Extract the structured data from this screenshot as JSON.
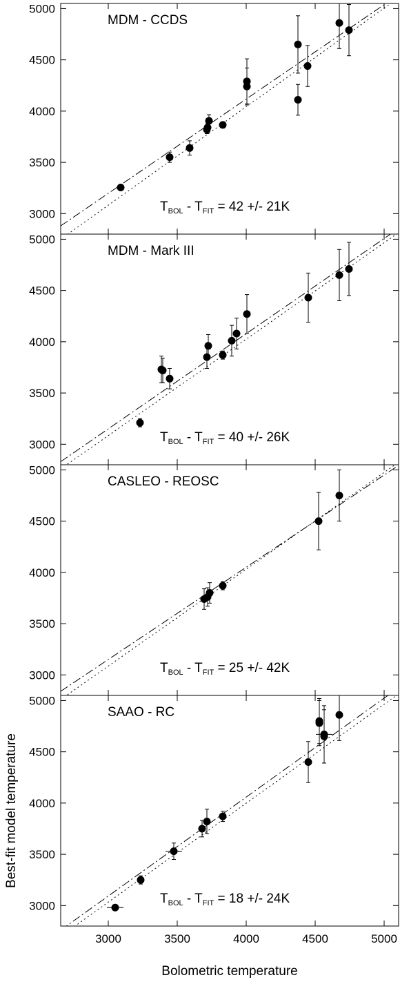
{
  "chart_data": [
    {
      "type": "scatter",
      "title": "MDM - CCDS",
      "annotation": [
        "T",
        "BOL",
        " - T",
        "FIT",
        " = 42 +/- 21K"
      ],
      "x": [
        3090,
        3445,
        3590,
        3715,
        3720,
        3730,
        3830,
        4005,
        4005,
        4375,
        4375,
        4445,
        4675,
        4745
      ],
      "values": [
        3255,
        3550,
        3640,
        3820,
        3840,
        3905,
        3865,
        4240,
        4290,
        4110,
        4650,
        4440,
        4860,
        4790
      ],
      "errors": [
        20,
        50,
        70,
        40,
        40,
        60,
        30,
        180,
        220,
        150,
        280,
        200,
        250,
        250
      ],
      "lines": [
        {
          "style": "dashdot",
          "x": [
            2655,
            5100
          ],
          "y": [
            2880,
            5130
          ]
        },
        {
          "style": "dotted",
          "x": [
            2655,
            5100
          ],
          "y": [
            2750,
            5100
          ]
        }
      ],
      "color": "#000000",
      "xlim": [
        2655,
        5105
      ],
      "ylim": [
        2800,
        5050
      ],
      "xticks": [
        3000,
        3500,
        4000,
        4500,
        5000
      ],
      "yticks": [
        3000,
        3500,
        4000,
        4500,
        5000
      ]
    },
    {
      "type": "scatter",
      "title": "MDM - Mark III",
      "annotation": [
        "T",
        "BOL",
        " - T",
        "FIT",
        " = 40 +/- 26K"
      ],
      "x": [
        3230,
        3385,
        3395,
        3445,
        3715,
        3725,
        3830,
        3895,
        3930,
        4005,
        4450,
        4675,
        4745
      ],
      "values": [
        3210,
        3730,
        3720,
        3640,
        3850,
        3960,
        3870,
        4010,
        4080,
        4270,
        4430,
        4650,
        4710
      ],
      "errors": [
        40,
        130,
        120,
        100,
        110,
        110,
        40,
        150,
        150,
        190,
        240,
        250,
        260
      ],
      "lines": [
        {
          "style": "dashdot",
          "x": [
            2655,
            5100
          ],
          "y": [
            2830,
            5100
          ]
        },
        {
          "style": "dotted",
          "x": [
            2655,
            5100
          ],
          "y": [
            2760,
            5060
          ]
        }
      ],
      "color": "#000000",
      "xlim": [
        2655,
        5105
      ],
      "ylim": [
        2800,
        5050
      ],
      "xticks": [
        3000,
        3500,
        4000,
        4500,
        5000
      ],
      "yticks": [
        3000,
        3500,
        4000,
        4500,
        5000
      ]
    },
    {
      "type": "scatter",
      "title": "CASLEO - REOSC",
      "annotation": [
        "T",
        "BOL",
        " - T",
        "FIT",
        " = 25 +/- 42K"
      ],
      "x": [
        3695,
        3720,
        3735,
        3830,
        4525,
        4675
      ],
      "values": [
        3740,
        3760,
        3800,
        3870,
        4500,
        4750
      ],
      "errors": [
        100,
        90,
        100,
        40,
        280,
        250
      ],
      "lines": [
        {
          "style": "dashdot",
          "x": [
            2655,
            5100
          ],
          "y": [
            2840,
            5040
          ]
        },
        {
          "style": "dotted",
          "x": [
            2655,
            5100
          ],
          "y": [
            2760,
            5070
          ]
        }
      ],
      "color": "#000000",
      "xlim": [
        2655,
        5105
      ],
      "ylim": [
        2800,
        5050
      ],
      "xticks": [
        3000,
        3500,
        4000,
        4500,
        5000
      ],
      "yticks": [
        3000,
        3500,
        4000,
        4500,
        5000
      ]
    },
    {
      "type": "scatter",
      "title": "SAAO - RC",
      "annotation": [
        "T",
        "BOL",
        " - T",
        "FIT",
        " = 18 +/- 24K"
      ],
      "xlabel": "Bolometric temperature",
      "ylabel": "Best-fit model temperature",
      "x": [
        3050,
        3235,
        3475,
        3680,
        3715,
        3830,
        4450,
        4530,
        4530,
        4565,
        4565,
        4675
      ],
      "values": [
        2980,
        3250,
        3530,
        3750,
        3820,
        3870,
        4400,
        4800,
        4780,
        4670,
        4650,
        4860
      ],
      "errors": [
        20,
        40,
        80,
        80,
        120,
        50,
        200,
        220,
        220,
        280,
        260,
        250
      ],
      "xerrors": [
        60,
        null,
        60,
        null,
        null,
        null,
        null,
        null,
        null,
        60,
        null,
        null
      ],
      "lines": [
        {
          "style": "dashdot",
          "x": [
            2655,
            5100
          ],
          "y": [
            2760,
            5120
          ]
        },
        {
          "style": "dotted",
          "x": [
            2655,
            5100
          ],
          "y": [
            2700,
            5060
          ]
        }
      ],
      "color": "#000000",
      "xlim": [
        2655,
        5105
      ],
      "ylim": [
        2800,
        5050
      ],
      "xticks": [
        3000,
        3500,
        4000,
        4500,
        5000
      ],
      "yticks": [
        3000,
        3500,
        4000,
        4500,
        5000
      ]
    }
  ]
}
